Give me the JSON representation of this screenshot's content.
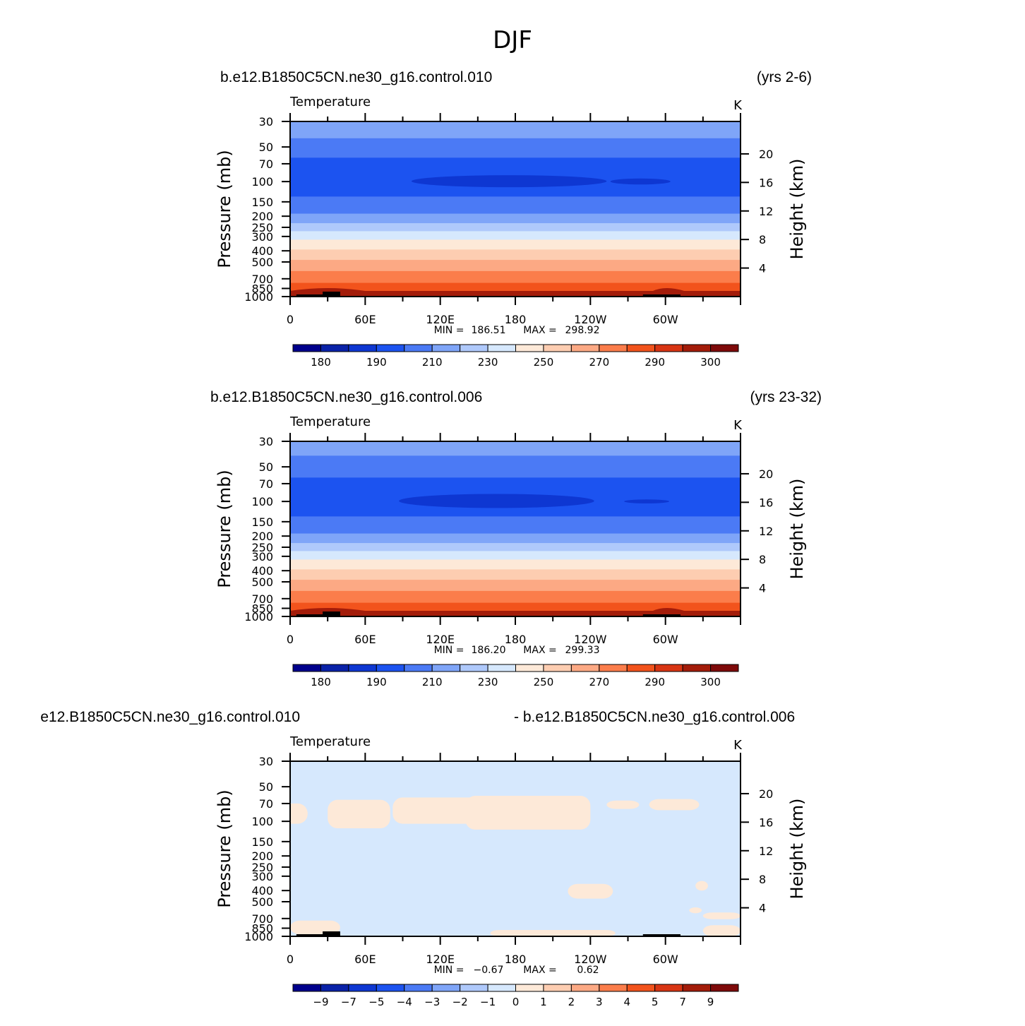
{
  "figure": {
    "title": "DJF"
  },
  "colors": {
    "palette": [
      "#00008c",
      "#0a22a8",
      "#0e37d2",
      "#1c53f0",
      "#4b7af5",
      "#7fa5f8",
      "#afc9fb",
      "#d6e8fd",
      "#fde9d8",
      "#fdcdb1",
      "#fca984",
      "#fb7d4b",
      "#f2531c",
      "#d83513",
      "#a31c0a",
      "#7e0a0a"
    ],
    "zone_far": "#4b7af5",
    "zone_near": "#1c53f0",
    "zone_core": "#0e37d2",
    "diff_bg": "#d6e8fd",
    "diff_pos": "#fde9d8"
  },
  "chart_data": [
    {
      "type": "heatmap",
      "case": "b.e12.B1850C5CN.ne30_g16.control.010",
      "period": "(yrs 2-6)",
      "variable": "Temperature",
      "units": "K",
      "ylabel": "Pressure  (mb)",
      "ylabel_right": "Height  (km)",
      "x_ticks": [
        "0",
        "60E",
        "120E",
        "180",
        "120W",
        "60W"
      ],
      "xlim_deg": [
        0,
        360
      ],
      "x_tick_values_deg": [
        0,
        60,
        120,
        180,
        240,
        300
      ],
      "pressure_ticks": [
        "30",
        "50",
        "70",
        "100",
        "150",
        "200",
        "250",
        "300",
        "400",
        "500",
        "700",
        "850",
        "1000"
      ],
      "pressure_values_mb": [
        30,
        50,
        70,
        100,
        150,
        200,
        250,
        300,
        400,
        500,
        700,
        850,
        1000
      ],
      "height_ticks": [
        "20",
        "16",
        "12",
        "8",
        "4"
      ],
      "height_values_km": [
        20,
        16,
        12,
        8,
        4
      ],
      "stats_min_label": "MIN =",
      "stats_min": "186.51",
      "stats_max_label": "MAX =",
      "stats_max": "298.92",
      "colorbar_labels": [
        "180",
        "190",
        "210",
        "230",
        "250",
        "270",
        "290",
        "300"
      ],
      "colorbar_boundaries": [
        175,
        180,
        185,
        190,
        200,
        210,
        220,
        230,
        240,
        250,
        260,
        270,
        280,
        290,
        295,
        300
      ],
      "levels": [
        {
          "p_top": 30,
          "p_bottom": 42,
          "class": 5
        },
        {
          "p_top": 42,
          "p_bottom": 62,
          "class": 4
        },
        {
          "p_top": 62,
          "p_bottom": 135,
          "class": 3
        },
        {
          "p_top": 135,
          "p_bottom": 190,
          "class": 4
        },
        {
          "p_top": 190,
          "p_bottom": 230,
          "class": 5
        },
        {
          "p_top": 230,
          "p_bottom": 270,
          "class": 6
        },
        {
          "p_top": 270,
          "p_bottom": 320,
          "class": 7
        },
        {
          "p_top": 320,
          "p_bottom": 390,
          "class": 8
        },
        {
          "p_top": 390,
          "p_bottom": 480,
          "class": 9
        },
        {
          "p_top": 480,
          "p_bottom": 600,
          "class": 10
        },
        {
          "p_top": 600,
          "p_bottom": 760,
          "class": 11
        },
        {
          "p_top": 760,
          "p_bottom": 900,
          "class": 12
        },
        {
          "p_top": 900,
          "p_bottom": 1000,
          "class": 13
        }
      ],
      "cold_cores": [
        {
          "lon_center": 175,
          "lon_halfwidth": 78,
          "p_top": 88,
          "p_bottom": 112,
          "class": 2
        },
        {
          "lon_center": 280,
          "lon_halfwidth": 24,
          "p_top": 94,
          "p_bottom": 106,
          "class": 2
        }
      ]
    },
    {
      "type": "heatmap",
      "case": "b.e12.B1850C5CN.ne30_g16.control.006",
      "period": "(yrs 23-32)",
      "variable": "Temperature",
      "units": "K",
      "ylabel": "Pressure  (mb)",
      "ylabel_right": "Height  (km)",
      "x_ticks": [
        "0",
        "60E",
        "120E",
        "180",
        "120W",
        "60W"
      ],
      "xlim_deg": [
        0,
        360
      ],
      "x_tick_values_deg": [
        0,
        60,
        120,
        180,
        240,
        300
      ],
      "pressure_ticks": [
        "30",
        "50",
        "70",
        "100",
        "150",
        "200",
        "250",
        "300",
        "400",
        "500",
        "700",
        "850",
        "1000"
      ],
      "pressure_values_mb": [
        30,
        50,
        70,
        100,
        150,
        200,
        250,
        300,
        400,
        500,
        700,
        850,
        1000
      ],
      "height_ticks": [
        "20",
        "16",
        "12",
        "8",
        "4"
      ],
      "height_values_km": [
        20,
        16,
        12,
        8,
        4
      ],
      "stats_min_label": "MIN =",
      "stats_min": "186.20",
      "stats_max_label": "MAX =",
      "stats_max": "299.33",
      "colorbar_labels": [
        "180",
        "190",
        "210",
        "230",
        "250",
        "270",
        "290",
        "300"
      ],
      "colorbar_boundaries": [
        175,
        180,
        185,
        190,
        200,
        210,
        220,
        230,
        240,
        250,
        260,
        270,
        280,
        290,
        295,
        300
      ],
      "levels": [
        {
          "p_top": 30,
          "p_bottom": 40,
          "class": 5
        },
        {
          "p_top": 40,
          "p_bottom": 62,
          "class": 4
        },
        {
          "p_top": 62,
          "p_bottom": 135,
          "class": 3
        },
        {
          "p_top": 135,
          "p_bottom": 190,
          "class": 4
        },
        {
          "p_top": 190,
          "p_bottom": 230,
          "class": 5
        },
        {
          "p_top": 230,
          "p_bottom": 270,
          "class": 6
        },
        {
          "p_top": 270,
          "p_bottom": 320,
          "class": 7
        },
        {
          "p_top": 320,
          "p_bottom": 390,
          "class": 8
        },
        {
          "p_top": 390,
          "p_bottom": 480,
          "class": 9
        },
        {
          "p_top": 480,
          "p_bottom": 600,
          "class": 10
        },
        {
          "p_top": 600,
          "p_bottom": 760,
          "class": 11
        },
        {
          "p_top": 760,
          "p_bottom": 900,
          "class": 12
        },
        {
          "p_top": 900,
          "p_bottom": 1000,
          "class": 13
        }
      ],
      "cold_cores": [
        {
          "lon_center": 165,
          "lon_halfwidth": 78,
          "p_top": 86,
          "p_bottom": 114,
          "class": 2
        },
        {
          "lon_center": 285,
          "lon_halfwidth": 18,
          "p_top": 96,
          "p_bottom": 104,
          "class": 2
        }
      ]
    },
    {
      "type": "heatmap",
      "case_left": "e12.B1850C5CN.ne30_g16.control.010",
      "case_right": "- b.e12.B1850C5CN.ne30_g16.control.006",
      "variable": "Temperature",
      "units": "K",
      "ylabel": "Pressure  (mb)",
      "ylabel_right": "Height  (km)",
      "x_ticks": [
        "0",
        "60E",
        "120E",
        "180",
        "120W",
        "60W"
      ],
      "xlim_deg": [
        0,
        360
      ],
      "x_tick_values_deg": [
        0,
        60,
        120,
        180,
        240,
        300
      ],
      "pressure_ticks": [
        "30",
        "50",
        "70",
        "100",
        "150",
        "200",
        "250",
        "300",
        "400",
        "500",
        "700",
        "850",
        "1000"
      ],
      "pressure_values_mb": [
        30,
        50,
        70,
        100,
        150,
        200,
        250,
        300,
        400,
        500,
        700,
        850,
        1000
      ],
      "height_ticks": [
        "20",
        "16",
        "12",
        "8",
        "4"
      ],
      "height_values_km": [
        20,
        16,
        12,
        8,
        4
      ],
      "stats_min_label": "MIN =",
      "stats_min": "−0.67",
      "stats_max_label": "MAX =",
      "stats_max": "0.62",
      "colorbar_labels": [
        "−9",
        "−7",
        "−5",
        "−4",
        "−3",
        "−2",
        "−1",
        "0",
        "1",
        "2",
        "3",
        "4",
        "5",
        "7",
        "9"
      ],
      "colorbar_boundaries": [
        -9,
        -7,
        -5,
        -4,
        -3,
        -2,
        -1,
        0,
        1,
        2,
        3,
        4,
        5,
        7,
        9
      ],
      "positive_regions": [
        {
          "lon_center": 55,
          "lon_halfwidth": 25,
          "p_top": 65,
          "p_bottom": 115
        },
        {
          "lon_center": 120,
          "lon_halfwidth": 38,
          "p_top": 62,
          "p_bottom": 105
        },
        {
          "lon_center": 190,
          "lon_halfwidth": 50,
          "p_top": 60,
          "p_bottom": 118
        },
        {
          "lon_center": 266,
          "lon_halfwidth": 13,
          "p_top": 66,
          "p_bottom": 78
        },
        {
          "lon_center": 307,
          "lon_halfwidth": 20,
          "p_top": 64,
          "p_bottom": 80
        },
        {
          "lon_center": 4,
          "lon_halfwidth": 10,
          "p_top": 70,
          "p_bottom": 105
        },
        {
          "lon_center": 240,
          "lon_halfwidth": 18,
          "p_top": 350,
          "p_bottom": 470
        },
        {
          "lon_center": 329,
          "lon_halfwidth": 5,
          "p_top": 330,
          "p_bottom": 400
        },
        {
          "lon_center": 324,
          "lon_halfwidth": 5,
          "p_top": 560,
          "p_bottom": 630
        },
        {
          "lon_center": 345,
          "lon_halfwidth": 15,
          "p_top": 620,
          "p_bottom": 710
        },
        {
          "lon_center": 20,
          "lon_halfwidth": 20,
          "p_top": 730,
          "p_bottom": 960
        },
        {
          "lon_center": 210,
          "lon_halfwidth": 50,
          "p_top": 880,
          "p_bottom": 1000
        },
        {
          "lon_center": 345,
          "lon_halfwidth": 15,
          "p_top": 800,
          "p_bottom": 1000
        }
      ]
    }
  ]
}
